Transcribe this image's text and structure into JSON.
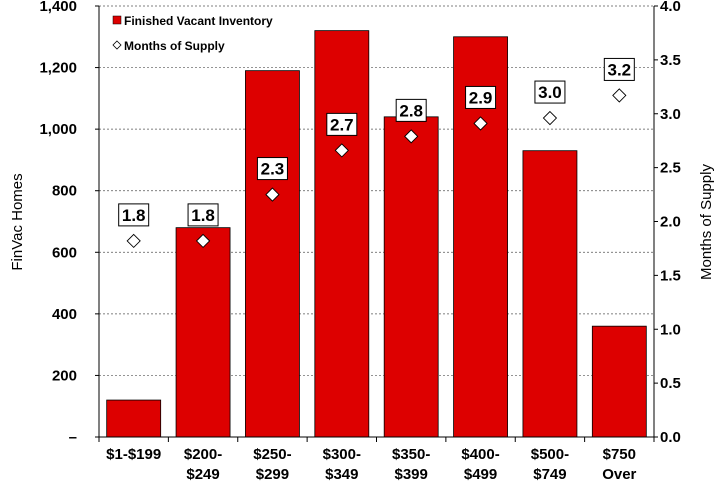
{
  "chart_data": {
    "type": "bar+scatter",
    "categories": [
      [
        "$1-$199"
      ],
      [
        "$200-",
        "$249"
      ],
      [
        "$250-",
        "$299"
      ],
      [
        "$300-",
        "$349"
      ],
      [
        "$350-",
        "$399"
      ],
      [
        "$400-",
        "$499"
      ],
      [
        "$500-",
        "$749"
      ],
      [
        "$750",
        "Over"
      ]
    ],
    "series": [
      {
        "name": "Finished Vacant Inventory",
        "type": "bar",
        "axis": "left",
        "color": "#dd0000",
        "values": [
          120,
          680,
          1190,
          1320,
          1040,
          1300,
          930,
          360
        ]
      },
      {
        "name": "Months of Supply",
        "type": "scatter",
        "marker": "diamond",
        "axis": "right",
        "values": [
          1.82,
          1.82,
          2.25,
          2.66,
          2.79,
          2.91,
          2.96,
          3.17
        ],
        "labels": [
          "1.8",
          "1.8",
          "2.3",
          "2.7",
          "2.8",
          "2.9",
          "3.0",
          "3.2"
        ]
      }
    ],
    "y_left": {
      "label": "FinVac Homes",
      "range": [
        0,
        1400
      ],
      "ticks": [
        0,
        200,
        400,
        600,
        800,
        1000,
        1200,
        1400
      ],
      "tick_labels": [
        "–",
        "200",
        "400",
        "600",
        "800",
        "1,000",
        "1,200",
        "1,400"
      ]
    },
    "y_right": {
      "label": "Months of Supply",
      "range": [
        0,
        4.0
      ],
      "ticks": [
        0,
        0.5,
        1.0,
        1.5,
        2.0,
        2.5,
        3.0,
        3.5,
        4.0
      ],
      "tick_labels": [
        "0.0",
        "0.5",
        "1.0",
        "1.5",
        "2.0",
        "2.5",
        "3.0",
        "3.5",
        "4.0"
      ]
    },
    "grid": "horizontal-dashed",
    "legend": "top-left"
  }
}
